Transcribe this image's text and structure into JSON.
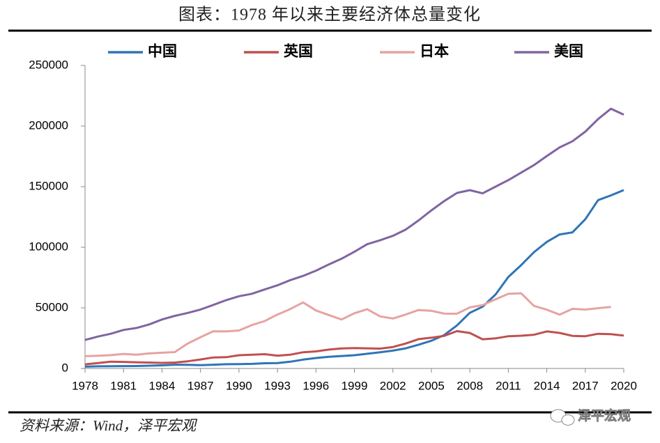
{
  "chart_data": {
    "type": "line",
    "title": "图表：1978 年以来主要经济体总量变化",
    "source": "资料来源：Wind，泽平宏观",
    "watermark": "泽平宏观",
    "x": [
      1978,
      1979,
      1980,
      1981,
      1982,
      1983,
      1984,
      1985,
      1986,
      1987,
      1988,
      1989,
      1990,
      1991,
      1992,
      1993,
      1994,
      1995,
      1996,
      1997,
      1998,
      1999,
      2000,
      2001,
      2002,
      2003,
      2004,
      2005,
      2006,
      2007,
      2008,
      2009,
      2010,
      2011,
      2012,
      2013,
      2014,
      2015,
      2016,
      2017,
      2018,
      2019,
      2020
    ],
    "xlim": [
      1978,
      2020
    ],
    "xticks": [
      1978,
      1981,
      1984,
      1987,
      1990,
      1993,
      1996,
      1999,
      2002,
      2005,
      2008,
      2011,
      2014,
      2017,
      2020
    ],
    "ylim": [
      0,
      250000
    ],
    "yticks": [
      0,
      50000,
      100000,
      150000,
      200000,
      250000
    ],
    "legend": "top",
    "series": [
      {
        "name": "中国",
        "color": "#2e75b6",
        "values": [
          1500,
          1800,
          1900,
          1950,
          2000,
          2300,
          2600,
          3100,
          3000,
          2700,
          3100,
          3500,
          3600,
          3800,
          4300,
          4400,
          5600,
          7300,
          8600,
          9600,
          10300,
          10900,
          12100,
          13400,
          14700,
          16600,
          19600,
          22900,
          27500,
          35500,
          45900,
          51000,
          61000,
          75500,
          85300,
          96000,
          104400,
          110600,
          112300,
          123100,
          138900,
          142800,
          147200
        ]
      },
      {
        "name": "英国",
        "color": "#c0504d",
        "values": [
          3400,
          4400,
          5600,
          5400,
          5100,
          4900,
          4600,
          4900,
          5900,
          7400,
          9100,
          9300,
          10900,
          11400,
          11800,
          10600,
          11400,
          13400,
          14100,
          15600,
          16500,
          16800,
          16600,
          16400,
          17700,
          20600,
          24200,
          25400,
          26900,
          30800,
          29300,
          24100,
          24800,
          26600,
          27000,
          27800,
          30600,
          29300,
          26900,
          26600,
          28600,
          28300,
          27100
        ]
      },
      {
        "name": "日本",
        "color": "#e6a3a1",
        "values": [
          10100,
          10500,
          11000,
          12000,
          11300,
          12400,
          13000,
          13500,
          20500,
          25800,
          30700,
          30600,
          31300,
          35800,
          39100,
          44500,
          49000,
          54500,
          47900,
          44100,
          40400,
          45600,
          48900,
          43000,
          41200,
          44500,
          48200,
          47600,
          45300,
          45200,
          50400,
          52300,
          57000,
          61600,
          62000,
          51600,
          48500,
          44400,
          49200,
          48600,
          49700,
          50800,
          null
        ]
      },
      {
        "name": "美国",
        "color": "#8064a2",
        "values": [
          23500,
          26300,
          28600,
          31800,
          33400,
          36300,
          40400,
          43400,
          45800,
          48600,
          52400,
          56400,
          59600,
          61600,
          65200,
          68600,
          72900,
          76400,
          80700,
          85800,
          90600,
          96300,
          102500,
          105800,
          109400,
          114600,
          122100,
          130400,
          138100,
          144800,
          147100,
          144500,
          150000,
          155400,
          161600,
          167800,
          175300,
          182400,
          187500,
          195400,
          205800,
          214300,
          209400
        ]
      }
    ]
  }
}
